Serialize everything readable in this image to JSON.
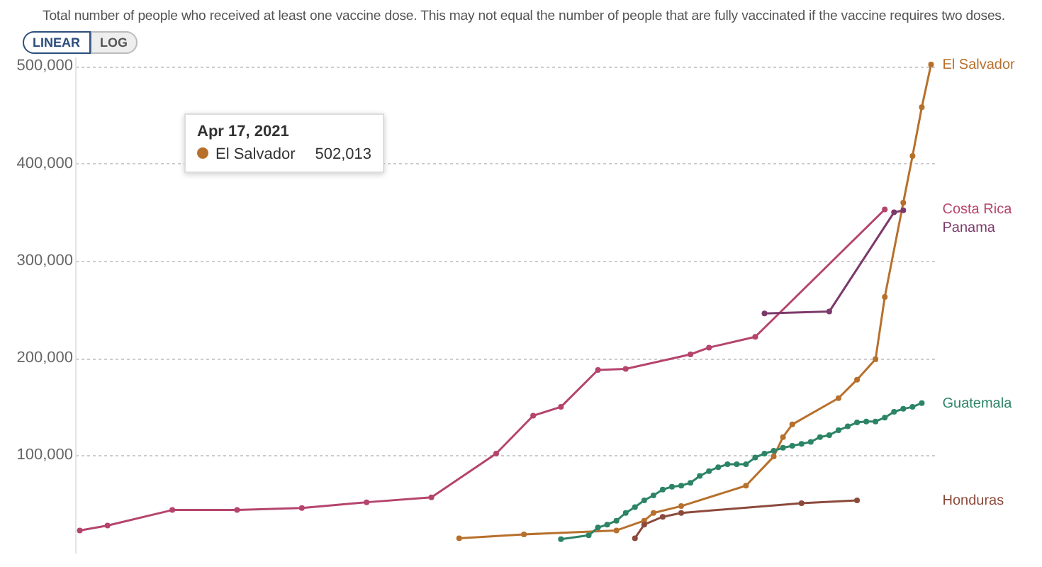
{
  "chart_data": {
    "type": "line",
    "subtitle": "Total number of people who received at least one vaccine dose. This may not equal the number of people that are fully vaccinated if the vaccine requires two doses.",
    "annotations": [
      "LINEAR",
      "LOG",
      "Apr 17, 2021",
      "El Salvador",
      "502,013"
    ],
    "categories": [
      null,
      null,
      null,
      null,
      null,
      null,
      null,
      null,
      null,
      null,
      null,
      null,
      null,
      null,
      null,
      null,
      null,
      null,
      null,
      null,
      null,
      null,
      null,
      null,
      null,
      null,
      null,
      null,
      null,
      null,
      null,
      null,
      null,
      null,
      null,
      null,
      null,
      null,
      null,
      null,
      null,
      null,
      null,
      null,
      null,
      null,
      null,
      null,
      null,
      null,
      null,
      null,
      null,
      null,
      null,
      null,
      null,
      null,
      null,
      null,
      null,
      null,
      null,
      null,
      null,
      null,
      null,
      null,
      null,
      null,
      null,
      null,
      null,
      null,
      null,
      null,
      null,
      null,
      null,
      null,
      null,
      null,
      null,
      null,
      null,
      null,
      null,
      null,
      null,
      null,
      null,
      null,
      null
    ],
    "series": [
      {
        "name": "El Salvador",
        "color": "#b7702c",
        "values": [
          null,
          null,
          null,
          null,
          null,
          null,
          null,
          null,
          null,
          null,
          null,
          null,
          null,
          null,
          null,
          null,
          null,
          null,
          null,
          null,
          null,
          null,
          null,
          null,
          null,
          null,
          null,
          null,
          null,
          null,
          null,
          null,
          null,
          null,
          null,
          null,
          null,
          null,
          null,
          null,
          null,
          15000,
          null,
          null,
          null,
          null,
          null,
          null,
          19000,
          null,
          null,
          null,
          null,
          null,
          null,
          null,
          null,
          null,
          23000,
          null,
          null,
          33000,
          41000,
          null,
          null,
          48000,
          null,
          null,
          null,
          null,
          null,
          null,
          69000,
          null,
          null,
          99000,
          119000,
          132000,
          null,
          null,
          null,
          null,
          159000,
          null,
          178000,
          null,
          199000,
          263000,
          null,
          360000,
          408000,
          458000,
          502013
        ]
      },
      {
        "name": "Costa Rica",
        "color": "#b5446d",
        "values": [
          23000,
          null,
          null,
          28000,
          null,
          null,
          null,
          null,
          null,
          null,
          44000,
          null,
          null,
          null,
          null,
          null,
          null,
          44000,
          null,
          null,
          null,
          null,
          null,
          null,
          46000,
          null,
          null,
          null,
          null,
          null,
          null,
          52000,
          null,
          null,
          null,
          null,
          null,
          null,
          57000,
          null,
          null,
          null,
          null,
          null,
          null,
          102000,
          null,
          null,
          null,
          141000,
          null,
          null,
          150000,
          null,
          null,
          null,
          188000,
          null,
          null,
          189000,
          null,
          null,
          null,
          null,
          null,
          null,
          204000,
          null,
          211000,
          null,
          null,
          null,
          null,
          222000,
          null,
          null,
          null,
          null,
          null,
          null,
          null,
          null,
          null,
          null,
          null,
          null,
          null,
          353000,
          null,
          null,
          null,
          null,
          null
        ]
      },
      {
        "name": "Panama",
        "color": "#7c3a6a",
        "values": [
          null,
          null,
          null,
          null,
          null,
          null,
          null,
          null,
          null,
          null,
          null,
          null,
          null,
          null,
          null,
          null,
          null,
          null,
          null,
          null,
          null,
          null,
          null,
          null,
          null,
          null,
          null,
          null,
          null,
          null,
          null,
          null,
          null,
          null,
          null,
          null,
          null,
          null,
          null,
          null,
          null,
          null,
          null,
          null,
          null,
          null,
          null,
          null,
          null,
          null,
          null,
          null,
          null,
          null,
          null,
          null,
          null,
          null,
          null,
          null,
          null,
          null,
          null,
          null,
          null,
          null,
          null,
          null,
          null,
          null,
          null,
          null,
          null,
          null,
          246000,
          null,
          null,
          null,
          null,
          null,
          null,
          248000,
          null,
          null,
          null,
          null,
          null,
          null,
          350000,
          352000,
          null,
          null,
          null
        ]
      },
      {
        "name": "Guatemala",
        "color": "#2c8465",
        "values": [
          null,
          null,
          null,
          null,
          null,
          null,
          null,
          null,
          null,
          null,
          null,
          null,
          null,
          null,
          null,
          null,
          null,
          null,
          null,
          null,
          null,
          null,
          null,
          null,
          null,
          null,
          null,
          null,
          null,
          null,
          null,
          null,
          null,
          null,
          null,
          null,
          null,
          null,
          null,
          null,
          null,
          null,
          null,
          null,
          null,
          null,
          null,
          null,
          null,
          null,
          null,
          null,
          14000,
          null,
          null,
          18000,
          26000,
          29000,
          33000,
          41000,
          47000,
          54000,
          59000,
          65000,
          68000,
          69000,
          72000,
          79000,
          84000,
          88000,
          91000,
          91000,
          91000,
          98000,
          102000,
          105000,
          108000,
          110000,
          112000,
          114000,
          119000,
          121000,
          126000,
          130000,
          134000,
          135000,
          135000,
          139000,
          145000,
          148000,
          150000,
          154000,
          null
        ]
      },
      {
        "name": "Honduras",
        "color": "#8c4a3c",
        "values": [
          null,
          null,
          null,
          null,
          null,
          null,
          null,
          null,
          null,
          null,
          null,
          null,
          null,
          null,
          null,
          null,
          null,
          null,
          null,
          null,
          null,
          null,
          null,
          null,
          null,
          null,
          null,
          null,
          null,
          null,
          null,
          null,
          null,
          null,
          null,
          null,
          null,
          null,
          null,
          null,
          null,
          null,
          null,
          null,
          null,
          null,
          null,
          null,
          null,
          null,
          null,
          null,
          null,
          null,
          null,
          null,
          null,
          null,
          null,
          null,
          15000,
          29000,
          null,
          37000,
          null,
          41000,
          null,
          null,
          null,
          null,
          null,
          null,
          null,
          null,
          null,
          null,
          null,
          null,
          51000,
          null,
          null,
          null,
          null,
          null,
          54000,
          null,
          null,
          null,
          null,
          null,
          null,
          null,
          null
        ]
      }
    ],
    "ylim": [
      0,
      510000
    ],
    "yticks": [
      {
        "value": 100000,
        "label": "100,000"
      },
      {
        "value": 200000,
        "label": "200,000"
      },
      {
        "value": 300000,
        "label": "300,000"
      },
      {
        "value": 400000,
        "label": "400,000"
      },
      {
        "value": 500000,
        "label": "500,000"
      }
    ],
    "grid": "y",
    "legend": false,
    "tick_labels": "y",
    "marker": "circle",
    "line_style": "solid"
  }
}
